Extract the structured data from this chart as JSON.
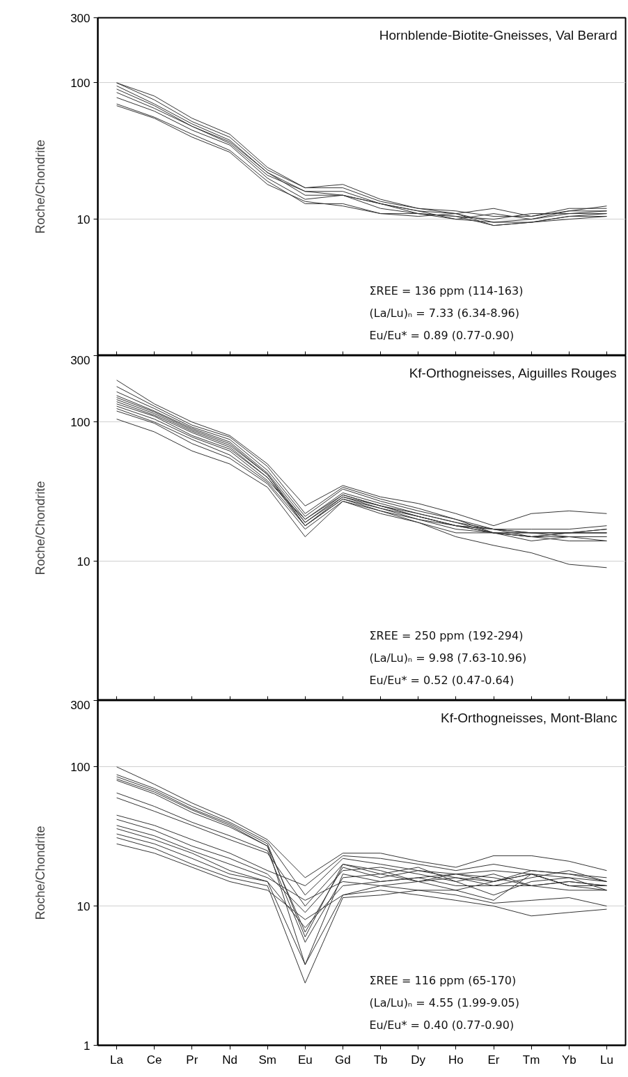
{
  "chart_data": [
    {
      "type": "line",
      "title": "Hornblende-Biotite-Gneisses, Val Berard",
      "ylabel": "Roche/Chondrite",
      "log": true,
      "ylim": [
        1,
        300
      ],
      "yticks": [
        10,
        100,
        300
      ],
      "grid": "y",
      "tick_labels": "y",
      "categories": [
        null,
        null,
        null,
        null,
        null,
        null,
        null,
        null,
        null,
        null,
        null,
        null,
        null,
        null
      ],
      "annotations": [
        "ΣREE = 136 ppm (114-163)",
        "(La/Lu)ₙ = 7.33 (6.34-8.96)",
        "Eu/Eu* = 0.89 (0.77-0.90)"
      ],
      "series": [
        {
          "color": "#333333",
          "values": [
            100,
            80,
            55,
            42,
            24,
            17,
            18,
            14,
            12,
            11,
            12,
            10.5,
            12,
            12
          ]
        },
        {
          "color": "#333333",
          "values": [
            95,
            70,
            50,
            38,
            22,
            15,
            15,
            13,
            11.5,
            11,
            9.5,
            10,
            11.5,
            12.5
          ]
        },
        {
          "color": "#333333",
          "values": [
            85,
            65,
            48,
            36,
            21,
            16,
            16,
            13,
            11,
            10.5,
            10,
            11,
            11,
            11.5
          ]
        },
        {
          "color": "#333333",
          "values": [
            78,
            62,
            45,
            35,
            20,
            14,
            15,
            12,
            11,
            10.5,
            9,
            9.5,
            10.5,
            11
          ]
        },
        {
          "color": "#333333",
          "values": [
            70,
            56,
            42,
            32,
            19,
            13,
            13,
            11,
            10.5,
            11,
            9,
            9.5,
            10.5,
            10.5
          ]
        },
        {
          "color": "#333333",
          "values": [
            68,
            55,
            40,
            31,
            18,
            13.5,
            12.5,
            11,
            11,
            10,
            9.5,
            9.5,
            10,
            10.5
          ]
        },
        {
          "color": "#333333",
          "values": [
            90,
            68,
            48,
            37,
            22,
            16,
            15,
            13,
            11.5,
            10,
            11,
            10,
            11,
            11
          ]
        },
        {
          "color": "#333333",
          "values": [
            100,
            75,
            52,
            40,
            23,
            17,
            17,
            13.5,
            12,
            11.5,
            10.5,
            10.5,
            11.5,
            11.5
          ]
        }
      ]
    },
    {
      "type": "line",
      "title": "Kf-Orthogneisses, Aiguilles Rouges",
      "ylabel": "Roche/Chondrite",
      "log": true,
      "ylim": [
        1,
        300
      ],
      "yticks": [
        10,
        100,
        300
      ],
      "grid": "y",
      "tick_labels": "y",
      "categories": [
        null,
        null,
        null,
        null,
        null,
        null,
        null,
        null,
        null,
        null,
        null,
        null,
        null,
        null
      ],
      "annotations": [
        "ΣREE = 250 ppm (192-294)",
        "(La/Lu)ₙ = 9.98 (7.63-10.96)",
        "Eu/Eu* = 0.52 (0.47-0.64)"
      ],
      "series": [
        {
          "color": "#333333",
          "values": [
            200,
            135,
            100,
            80,
            50,
            25,
            35,
            29,
            26,
            22,
            18,
            22,
            23,
            22
          ]
        },
        {
          "color": "#333333",
          "values": [
            180,
            130,
            95,
            78,
            48,
            22,
            34,
            28,
            24,
            20,
            16,
            15,
            16,
            17
          ]
        },
        {
          "color": "#333333",
          "values": [
            165,
            125,
            92,
            75,
            45,
            21,
            33,
            27,
            23,
            20,
            17,
            16,
            16,
            16
          ]
        },
        {
          "color": "#333333",
          "values": [
            155,
            120,
            90,
            72,
            43,
            20,
            31,
            26,
            22,
            19,
            17,
            15,
            15,
            15
          ]
        },
        {
          "color": "#333333",
          "values": [
            150,
            118,
            88,
            70,
            42,
            19,
            30,
            25,
            22,
            19,
            16,
            14,
            15,
            14
          ]
        },
        {
          "color": "#333333",
          "values": [
            145,
            115,
            86,
            68,
            42,
            18,
            29,
            25,
            21,
            18,
            16,
            15,
            14,
            14
          ]
        },
        {
          "color": "#333333",
          "values": [
            140,
            112,
            84,
            66,
            40,
            19,
            29,
            24,
            21,
            18,
            17,
            16,
            16,
            17
          ]
        },
        {
          "color": "#333333",
          "values": [
            135,
            110,
            80,
            64,
            40,
            18,
            28,
            24,
            20,
            18,
            16,
            15,
            16,
            16
          ]
        },
        {
          "color": "#333333",
          "values": [
            130,
            105,
            78,
            62,
            38,
            20,
            30,
            25,
            21,
            18,
            17,
            17,
            17,
            18
          ]
        },
        {
          "color": "#333333",
          "values": [
            125,
            100,
            75,
            58,
            37,
            18,
            28,
            23,
            20,
            17,
            16,
            16,
            15,
            15
          ]
        },
        {
          "color": "#333333",
          "values": [
            120,
            98,
            70,
            55,
            36,
            17,
            27,
            23,
            19,
            15,
            13,
            11.5,
            9.5,
            9
          ]
        },
        {
          "color": "#333333",
          "values": [
            105,
            85,
            62,
            50,
            34,
            15,
            27,
            22,
            19,
            16,
            16,
            16,
            16,
            16
          ]
        }
      ]
    },
    {
      "type": "line",
      "title": "Kf-Orthogneisses, Mont-Blanc",
      "ylabel": "Roche/Chondrite",
      "log": true,
      "ylim": [
        1,
        300
      ],
      "yticks": [
        1,
        10,
        100,
        300
      ],
      "grid": "y",
      "categories": [
        "La",
        "Ce",
        "Pr",
        "Nd",
        "Sm",
        "Eu",
        "Gd",
        "Tb",
        "Dy",
        "Ho",
        "Er",
        "Tm",
        "Yb",
        "Lu"
      ],
      "annotations": [
        "ΣREE = 116 ppm (65-170)",
        "(La/Lu)ₙ = 4.55 (1.99-9.05)",
        "Eu/Eu* = 0.40 (0.77-0.90)"
      ],
      "series": [
        {
          "color": "#333333",
          "values": [
            100,
            75,
            55,
            42,
            30,
            16,
            24,
            24,
            21,
            19,
            23,
            23,
            21,
            18
          ]
        },
        {
          "color": "#333333",
          "values": [
            88,
            70,
            52,
            40,
            29,
            12,
            22,
            20,
            18,
            17,
            18,
            17,
            16,
            15
          ]
        },
        {
          "color": "#333333",
          "values": [
            85,
            68,
            50,
            39,
            28,
            6,
            20,
            17,
            15,
            17,
            15,
            17,
            14,
            14
          ]
        },
        {
          "color": "#333333",
          "values": [
            82,
            66,
            49,
            38,
            27,
            6.5,
            19,
            16,
            18,
            16,
            14,
            16,
            18,
            15
          ]
        },
        {
          "color": "#333333",
          "values": [
            80,
            64,
            47,
            37,
            27,
            3.8,
            17,
            15,
            16,
            14,
            14,
            14,
            15,
            14
          ]
        },
        {
          "color": "#333333",
          "values": [
            65,
            52,
            40,
            32,
            25,
            5.5,
            16,
            17,
            19,
            15,
            12,
            15,
            16,
            13
          ]
        },
        {
          "color": "#333333",
          "values": [
            60,
            48,
            38,
            30,
            24,
            10,
            20,
            18,
            15,
            13,
            11,
            17,
            14,
            14
          ]
        },
        {
          "color": "#333333",
          "values": [
            45,
            38,
            30,
            24,
            18,
            14,
            23,
            22,
            20,
            18,
            20,
            18,
            17,
            15
          ]
        },
        {
          "color": "#333333",
          "values": [
            42,
            35,
            27,
            22,
            17,
            9,
            18,
            19,
            17,
            15,
            17,
            14,
            15,
            14
          ]
        },
        {
          "color": "#333333",
          "values": [
            38,
            32,
            25,
            20,
            16,
            11,
            15,
            14,
            13,
            12,
            10.5,
            11,
            11.5,
            10
          ]
        },
        {
          "color": "#333333",
          "values": [
            36,
            30,
            24,
            18,
            15,
            7,
            14,
            15,
            16,
            17,
            16,
            14,
            13,
            13
          ]
        },
        {
          "color": "#333333",
          "values": [
            33,
            28,
            22,
            17,
            15,
            3.8,
            12,
            13,
            12,
            11,
            10,
            8.5,
            9,
            9.5
          ]
        },
        {
          "color": "#333333",
          "values": [
            31,
            26,
            20,
            16,
            14,
            2.8,
            11.5,
            12,
            13,
            13,
            15,
            17,
            14,
            13
          ]
        },
        {
          "color": "#333333",
          "values": [
            28,
            24,
            19,
            15,
            13,
            8,
            12,
            14,
            15,
            16,
            15,
            18,
            17,
            16
          ]
        }
      ]
    }
  ]
}
